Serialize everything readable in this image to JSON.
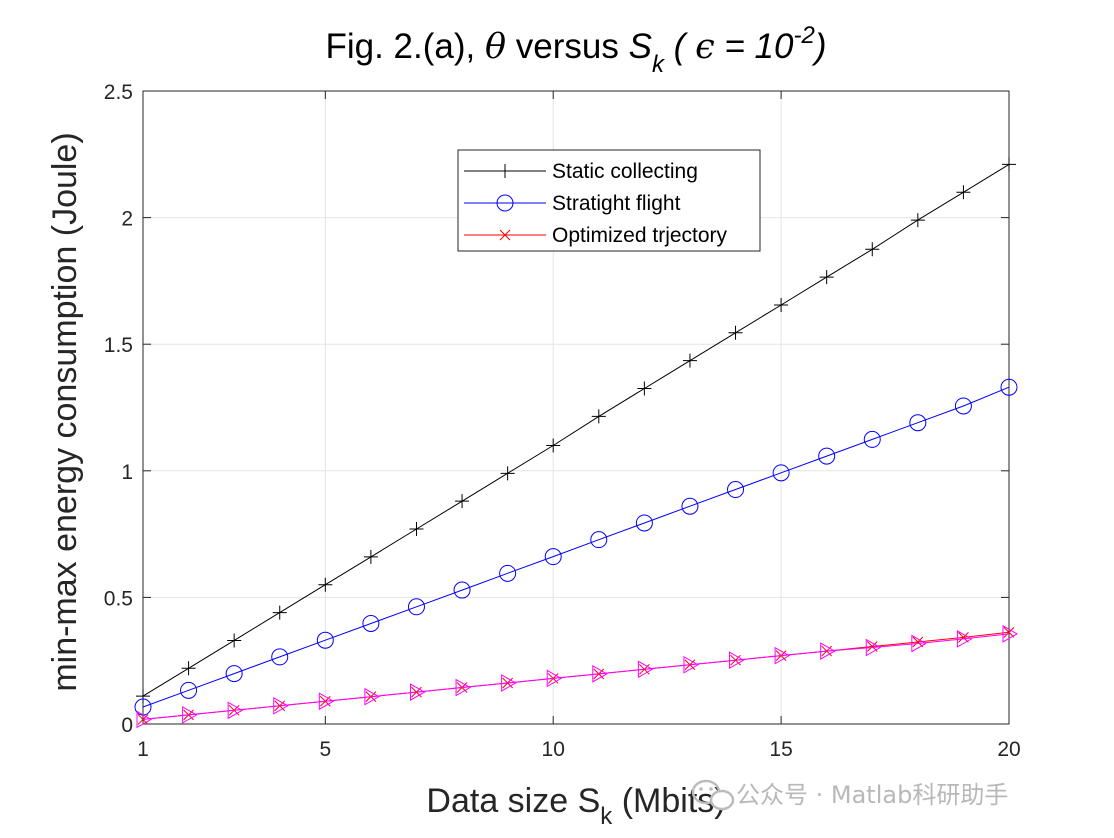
{
  "chart_data": {
    "type": "line",
    "title_parts": {
      "prefix": "Fig. 2.(a), ",
      "theta": "θ",
      "versus": " versus  ",
      "S": "S",
      "k": "k",
      "open_paren": " ( ",
      "epsilon": "ϵ",
      "eq_ten": " = 10",
      "exponent": "-2",
      "close_paren": ")"
    },
    "xlabel_main": "Data size S",
    "xlabel_sub": "k",
    "xlabel_tail": " (Mbits)",
    "ylabel": "min-max energy consumption (Joule)",
    "xlim": [
      1,
      20
    ],
    "ylim": [
      0,
      2.5
    ],
    "xticks": [
      1,
      5,
      10,
      15,
      20
    ],
    "xtick_labels": [
      "1",
      "5",
      "10",
      "15",
      "20"
    ],
    "yticks": [
      0,
      0.5,
      1,
      1.5,
      2,
      2.5
    ],
    "ytick_labels": [
      "0",
      "0.5",
      "1",
      "1.5",
      "2",
      "2.5"
    ],
    "grid": true,
    "legend_position": "top-center",
    "x": [
      1,
      2,
      3,
      4,
      5,
      6,
      7,
      8,
      9,
      10,
      11,
      12,
      13,
      14,
      15,
      16,
      17,
      18,
      19,
      20
    ],
    "series": [
      {
        "name": "Static collecting",
        "color": "#000000",
        "marker": "plus",
        "in_legend": true,
        "values": [
          0.11,
          0.22,
          0.33,
          0.44,
          0.55,
          0.66,
          0.77,
          0.88,
          0.99,
          1.1,
          1.215,
          1.325,
          1.435,
          1.545,
          1.655,
          1.765,
          1.875,
          1.99,
          2.1,
          2.21
        ]
      },
      {
        "name": "Stratight flight",
        "color": "#0000ff",
        "marker": "circle",
        "in_legend": true,
        "values": [
          0.067,
          0.133,
          0.199,
          0.265,
          0.331,
          0.397,
          0.463,
          0.529,
          0.595,
          0.661,
          0.728,
          0.794,
          0.86,
          0.926,
          0.992,
          1.058,
          1.124,
          1.19,
          1.256,
          1.33
        ]
      },
      {
        "name": "Optimized trjectory",
        "color": "#ff0000",
        "marker": "x",
        "in_legend": true,
        "values": [
          0.018,
          0.036,
          0.054,
          0.072,
          0.09,
          0.108,
          0.126,
          0.144,
          0.162,
          0.18,
          0.198,
          0.216,
          0.234,
          0.252,
          0.27,
          0.288,
          0.306,
          0.324,
          0.342,
          0.362
        ]
      },
      {
        "name": "",
        "color": "#ff00ff",
        "marker": "triangle-right",
        "in_legend": false,
        "values": [
          0.018,
          0.036,
          0.054,
          0.072,
          0.09,
          0.108,
          0.126,
          0.144,
          0.162,
          0.18,
          0.198,
          0.216,
          0.234,
          0.252,
          0.27,
          0.288,
          0.302,
          0.318,
          0.336,
          0.356
        ]
      }
    ]
  },
  "watermark": {
    "icon": "wechat-icon",
    "text": "公众号 · Matlab科研助手"
  }
}
